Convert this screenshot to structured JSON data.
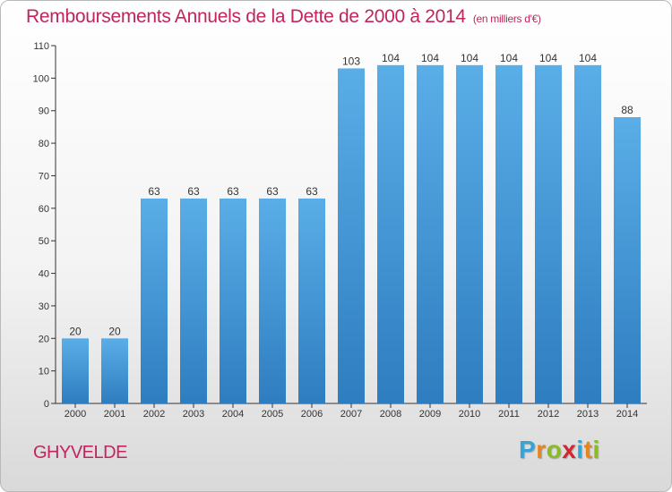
{
  "title": "Remboursements Annuels de la Dette de 2000 à 2014",
  "subtitle": "(en milliers d'€)",
  "location": "GHYVELDE",
  "logo": {
    "letters": [
      "P",
      "r",
      "o",
      "x",
      "i",
      "t",
      "i"
    ],
    "colors": [
      "#3aa3d6",
      "#e8841c",
      "#8bbb25",
      "#d4262e",
      "#3aa3d6",
      "#e8841c",
      "#8bbb25"
    ]
  },
  "colors": {
    "title": "#c1245e",
    "bar_light": "#5aaee7",
    "bar_dark": "#2e7dc0",
    "axis": "#333333"
  },
  "chart_data": {
    "type": "bar",
    "categories": [
      "2000",
      "2001",
      "2002",
      "2003",
      "2004",
      "2005",
      "2006",
      "2007",
      "2008",
      "2009",
      "2010",
      "2011",
      "2012",
      "2013",
      "2014"
    ],
    "values": [
      20,
      20,
      63,
      63,
      63,
      63,
      63,
      103,
      104,
      104,
      104,
      104,
      104,
      104,
      88
    ],
    "ylim": [
      0,
      110
    ],
    "yticks": [
      0,
      10,
      20,
      30,
      40,
      50,
      60,
      70,
      80,
      90,
      100,
      110
    ],
    "title": "Remboursements Annuels de la Dette de 2000 à 2014",
    "xlabel": "",
    "ylabel": "",
    "grid": false
  }
}
